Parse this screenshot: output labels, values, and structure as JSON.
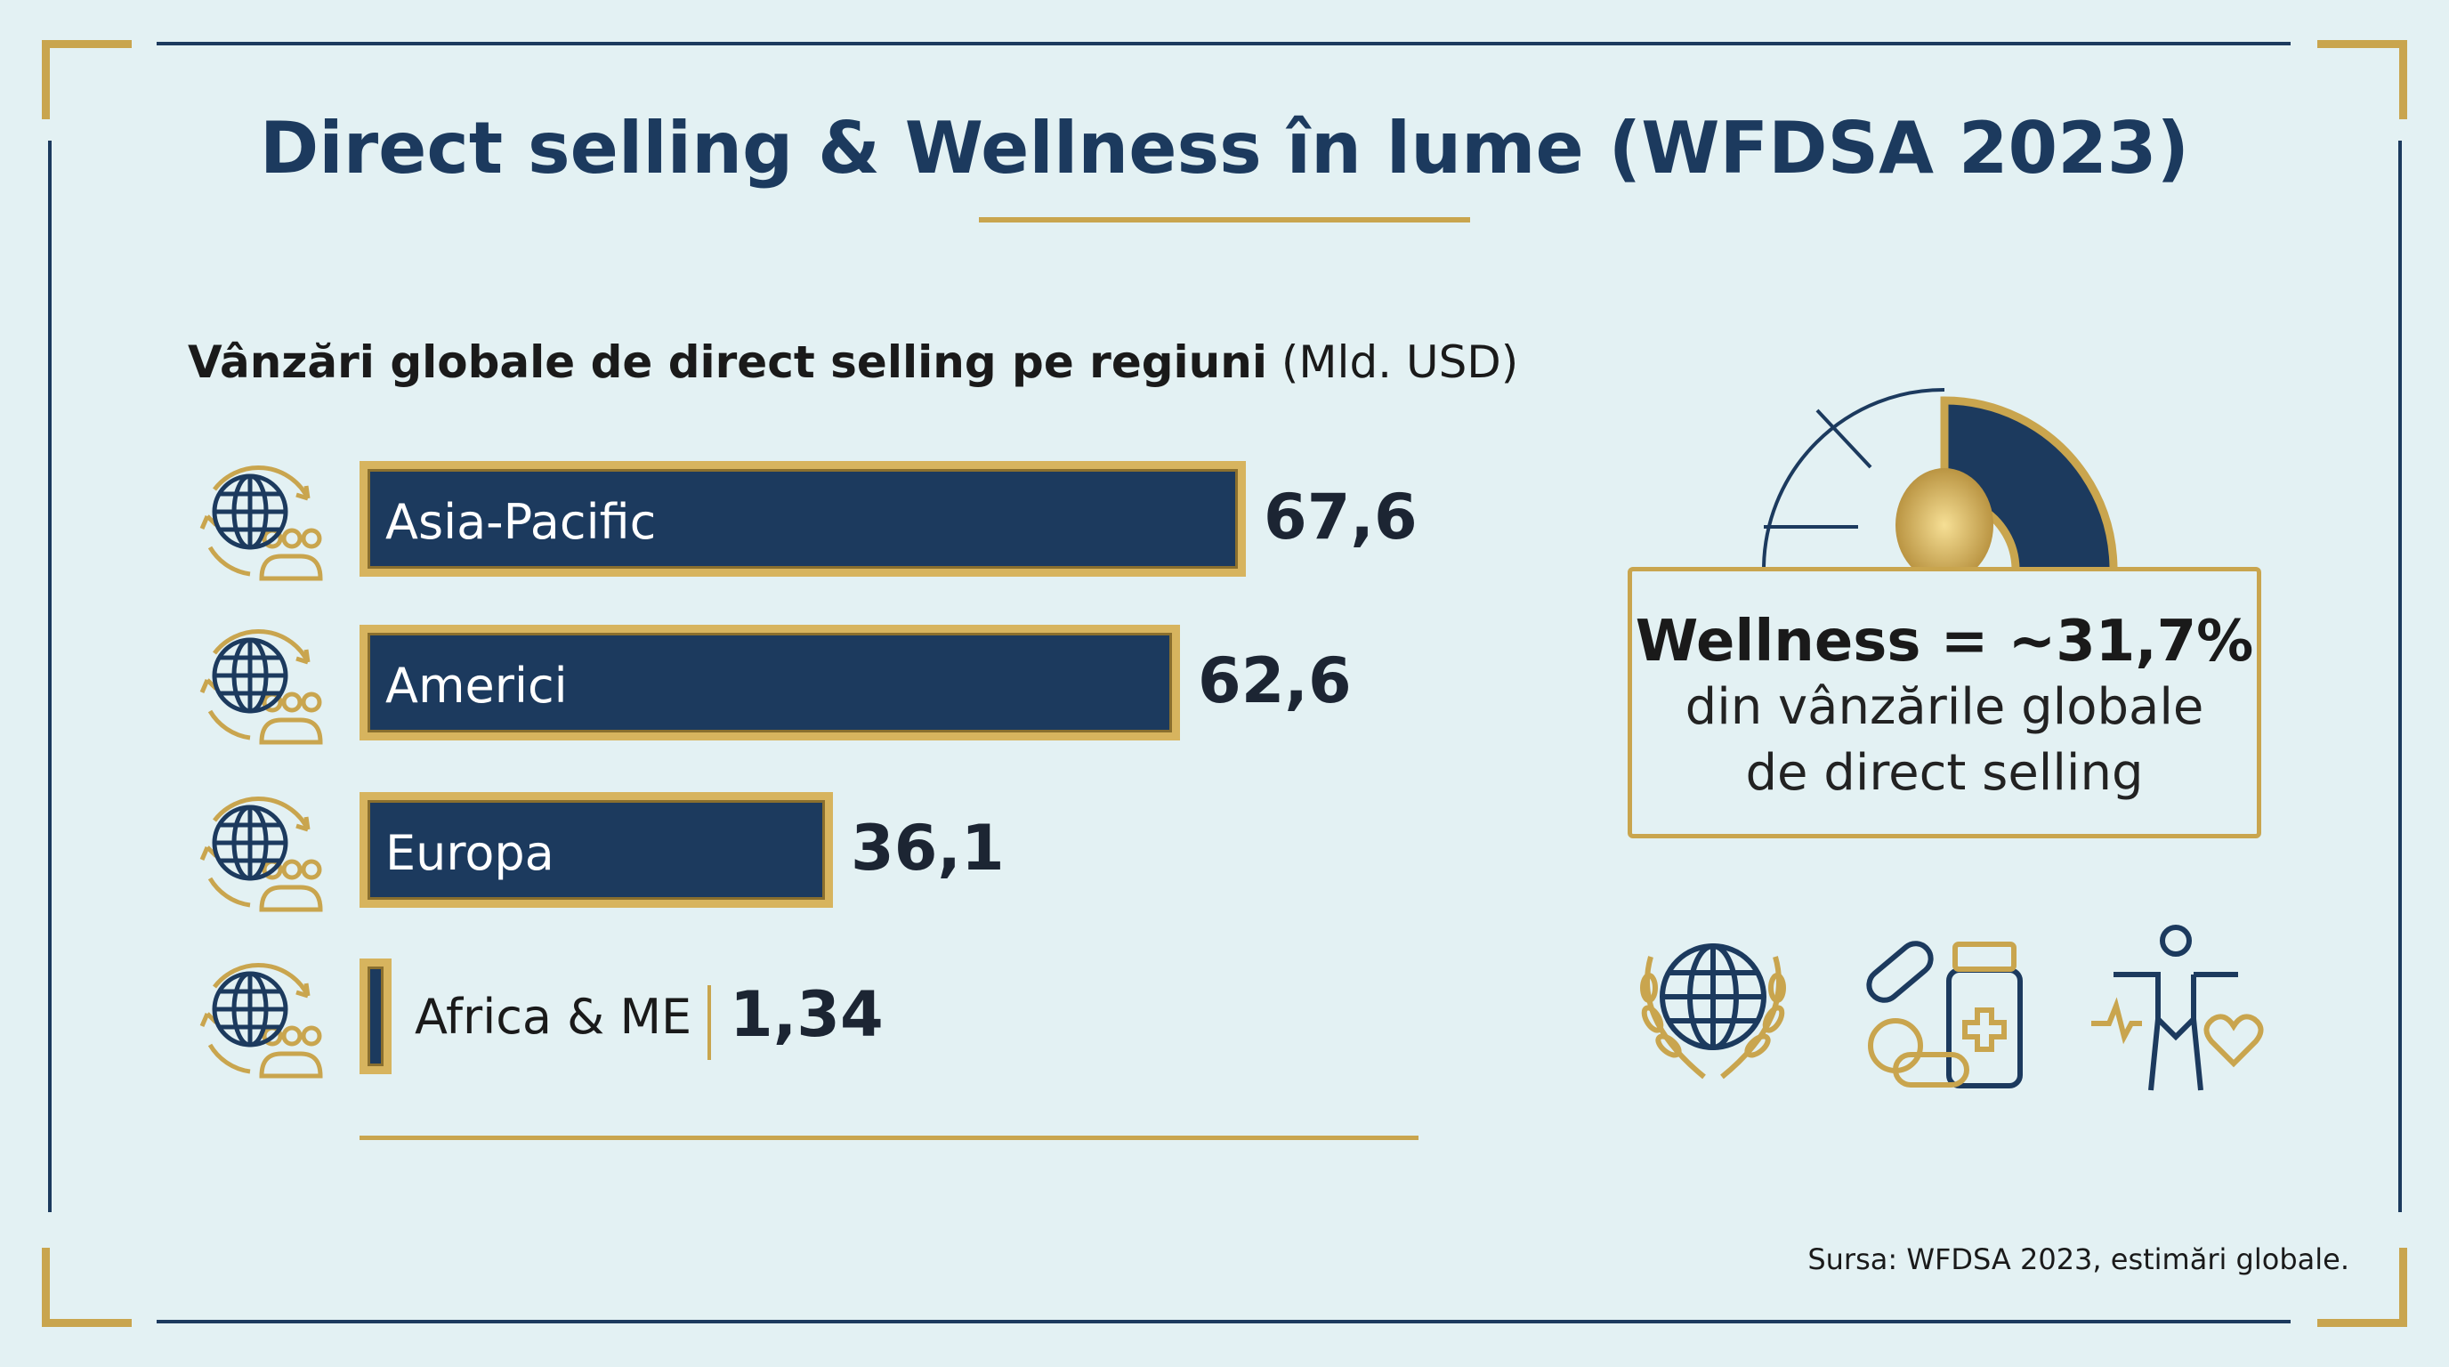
{
  "title": "Direct selling & Wellness în lume (WFDSA 2023)",
  "chart_data": {
    "type": "bar",
    "orientation": "horizontal",
    "title": "Vânzări globale de direct selling pe regiuni",
    "unit_label": "(Mld. USD)",
    "categories": [
      "Asia-Pacific",
      "Americi",
      "Europa",
      "Africa & ME"
    ],
    "values": [
      67.6,
      62.6,
      36.1,
      1.34
    ],
    "value_labels": [
      "67,6",
      "62,6",
      "36,1",
      "1,34"
    ],
    "xlim": [
      0,
      67.6
    ]
  },
  "callout": {
    "headline": "Wellness = ~31,7%",
    "line2": "din vânzările globale",
    "line3": "de direct selling",
    "share_percent": 31.7
  },
  "bottom_icons": [
    "laurel-globe-icon",
    "pills-bottle-icon",
    "wellness-body-icon"
  ],
  "source": "Sursa: WFDSA 2023, estimări globale.",
  "colors": {
    "navy": "#1c3a5e",
    "gold": "#c9a54e",
    "background": "#e3f1f3"
  }
}
